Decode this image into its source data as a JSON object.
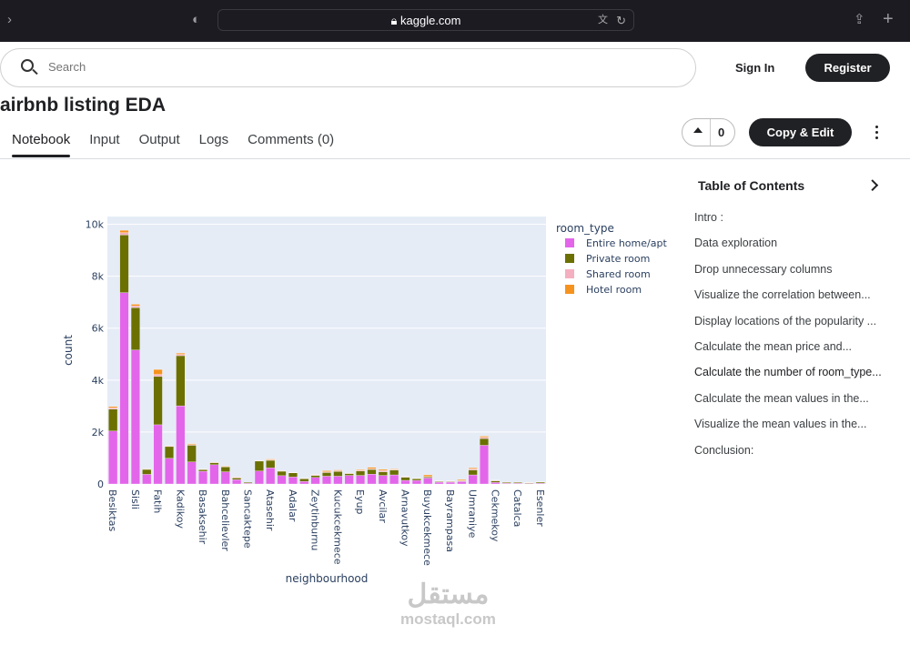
{
  "browser": {
    "url": "kaggle.com"
  },
  "header": {
    "search_placeholder": "Search",
    "sign_in": "Sign In",
    "register": "Register"
  },
  "notebook": {
    "title": "airbnb listing EDA",
    "tabs": [
      "Notebook",
      "Input",
      "Output",
      "Logs",
      "Comments (0)"
    ],
    "vote_count": "0",
    "copy_edit": "Copy & Edit"
  },
  "toc": {
    "title": "Table of Contents",
    "items": [
      "Intro :",
      "Data exploration",
      "Drop unnecessary columns",
      "Visualize the correlation between...",
      "Display locations of the popularity ...",
      "Calculate the mean price and...",
      "Calculate the number of room_type...",
      "Calculate the mean values in the...",
      "Visualize the mean values in the...",
      "Conclusion:"
    ],
    "active_index": 6
  },
  "watermark": {
    "arabic": "مستقل",
    "latin": "mostaql.com"
  },
  "chart_data": {
    "type": "bar",
    "stacked": true,
    "xlabel": "neighbourhood",
    "ylabel": "count",
    "ylim": [
      0,
      10300
    ],
    "yticks": [
      0,
      2000,
      4000,
      6000,
      8000,
      10000
    ],
    "ytick_labels": [
      "0",
      "2k",
      "4k",
      "6k",
      "8k",
      "10k"
    ],
    "legend_title": "room_type",
    "legend_position": "right",
    "categories": [
      "Besiktas",
      "",
      "Sisli",
      "",
      "Fatih",
      "",
      "Kadikoy",
      "",
      "Basaksehir",
      "",
      "Bahcelievler",
      "",
      "Sancaktepe",
      "",
      "Atasehir",
      "",
      "Adalar",
      "",
      "Zeytinburnu",
      "",
      "Kucukcekmece",
      "",
      "Eyup",
      "",
      "Avcilar",
      "",
      "Arnavutkoy",
      "",
      "Buyukcekmece",
      "",
      "Bayrampasa",
      "",
      "Umraniye",
      "",
      "Cekmekoy",
      "",
      "Catalca",
      "",
      "Esenler"
    ],
    "series": [
      {
        "name": "Entire home/apt",
        "color": "#e366ea",
        "values": [
          2040,
          7370,
          5160,
          370,
          2280,
          990,
          3010,
          850,
          490,
          740,
          470,
          170,
          30,
          500,
          620,
          320,
          270,
          100,
          250,
          300,
          300,
          330,
          330,
          380,
          330,
          350,
          140,
          140,
          230,
          70,
          70,
          100,
          350,
          1490,
          60,
          30,
          30,
          20,
          30
        ]
      },
      {
        "name": "Private room",
        "color": "#6b7000",
        "values": [
          840,
          2220,
          1630,
          190,
          1860,
          450,
          1930,
          640,
          60,
          80,
          190,
          60,
          30,
          380,
          290,
          170,
          160,
          100,
          80,
          140,
          180,
          70,
          170,
          180,
          140,
          190,
          120,
          60,
          40,
          30,
          20,
          20,
          190,
          260,
          60,
          30,
          30,
          20,
          40
        ]
      },
      {
        "name": "Shared room",
        "color": "#f4b0c0",
        "values": [
          50,
          90,
          70,
          10,
          80,
          20,
          50,
          30,
          10,
          10,
          10,
          30,
          0,
          10,
          20,
          10,
          10,
          10,
          20,
          30,
          30,
          10,
          30,
          30,
          50,
          20,
          20,
          10,
          20,
          10,
          20,
          10,
          40,
          50,
          20,
          5,
          5,
          10,
          5
        ]
      },
      {
        "name": "Hotel room",
        "color": "#f6931e",
        "values": [
          50,
          90,
          60,
          10,
          190,
          10,
          50,
          30,
          10,
          10,
          20,
          10,
          0,
          10,
          30,
          10,
          10,
          10,
          10,
          40,
          30,
          10,
          30,
          50,
          40,
          20,
          10,
          10,
          60,
          10,
          10,
          40,
          40,
          40,
          10,
          5,
          5,
          10,
          5
        ]
      }
    ]
  }
}
